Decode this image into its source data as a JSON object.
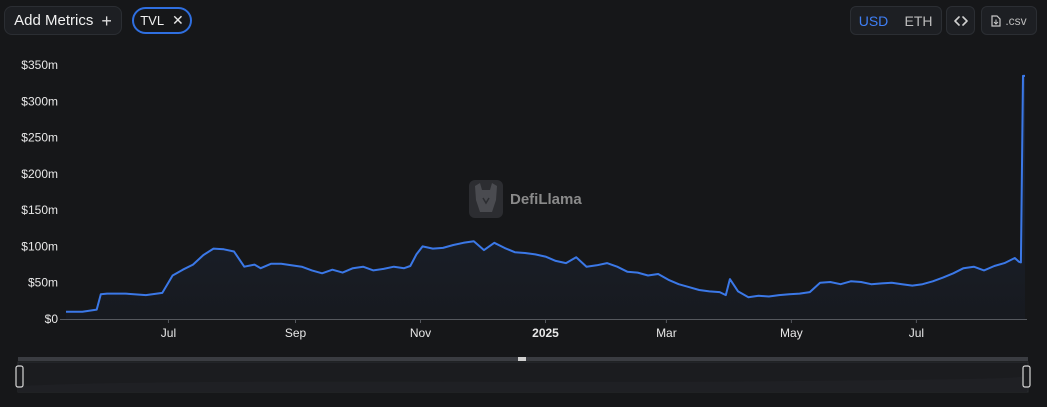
{
  "toolbar": {
    "add_metrics_label": "Add Metrics",
    "add_icon": "plus-icon",
    "chip_label": "TVL",
    "chip_close_icon": "close-icon",
    "currency_options": [
      "USD",
      "ETH"
    ],
    "selected_currency": "USD",
    "embed_icon": "code-icon",
    "csv_icon": "file-icon",
    "csv_label": ".csv"
  },
  "watermark": "DefiLlama",
  "colors": {
    "accent": "#2f6fe0",
    "line": "#3b78e7",
    "background": "#161719"
  },
  "chart_data": {
    "type": "area",
    "title": "",
    "xlabel": "",
    "ylabel": "",
    "ylim": [
      0,
      350
    ],
    "y_unit": "m",
    "y_ticks": [
      0,
      50,
      100,
      150,
      200,
      250,
      300,
      350
    ],
    "y_tick_labels": [
      "$0",
      "$50m",
      "$100m",
      "$150m",
      "$200m",
      "$250m",
      "$300m",
      "$350m"
    ],
    "x_tick_labels": [
      {
        "date": "2024-07-01",
        "label": "Jul",
        "bold": false
      },
      {
        "date": "2024-09-01",
        "label": "Sep",
        "bold": false
      },
      {
        "date": "2024-11-01",
        "label": "Nov",
        "bold": false
      },
      {
        "date": "2025-01-01",
        "label": "2025",
        "bold": true
      },
      {
        "date": "2025-03-01",
        "label": "Mar",
        "bold": false
      },
      {
        "date": "2025-05-01",
        "label": "May",
        "bold": false
      },
      {
        "date": "2025-07-01",
        "label": "Jul",
        "bold": false
      }
    ],
    "series": [
      {
        "x": [
          "2024-05-12",
          "2024-05-20",
          "2024-05-27",
          "2024-05-29",
          "2024-06-01",
          "2024-06-10",
          "2024-06-20",
          "2024-06-28",
          "2024-07-03",
          "2024-07-08",
          "2024-07-13",
          "2024-07-18",
          "2024-07-23",
          "2024-07-28",
          "2024-08-02",
          "2024-08-07",
          "2024-08-12",
          "2024-08-15",
          "2024-08-20",
          "2024-08-25",
          "2024-08-30",
          "2024-09-04",
          "2024-09-09",
          "2024-09-14",
          "2024-09-19",
          "2024-09-24",
          "2024-09-29",
          "2024-10-04",
          "2024-10-09",
          "2024-10-14",
          "2024-10-19",
          "2024-10-24",
          "2024-10-27",
          "2024-10-30",
          "2024-11-02",
          "2024-11-07",
          "2024-11-12",
          "2024-11-17",
          "2024-11-22",
          "2024-11-27",
          "2024-12-02",
          "2024-12-07",
          "2024-12-12",
          "2024-12-17",
          "2024-12-22",
          "2024-12-27",
          "2025-01-01",
          "2025-01-06",
          "2025-01-11",
          "2025-01-16",
          "2025-01-21",
          "2025-01-26",
          "2025-01-31",
          "2025-02-05",
          "2025-02-10",
          "2025-02-15",
          "2025-02-20",
          "2025-02-25",
          "2025-03-02",
          "2025-03-07",
          "2025-03-12",
          "2025-03-17",
          "2025-03-22",
          "2025-03-27",
          "2025-03-30",
          "2025-04-01",
          "2025-04-05",
          "2025-04-10",
          "2025-04-15",
          "2025-04-20",
          "2025-04-25",
          "2025-04-30",
          "2025-05-05",
          "2025-05-10",
          "2025-05-15",
          "2025-05-20",
          "2025-05-25",
          "2025-05-30",
          "2025-06-04",
          "2025-06-09",
          "2025-06-14",
          "2025-06-19",
          "2025-06-24",
          "2025-06-29",
          "2025-07-04",
          "2025-07-09",
          "2025-07-14",
          "2025-07-19",
          "2025-07-24",
          "2025-07-29",
          "2025-08-03",
          "2025-08-08",
          "2025-08-13",
          "2025-08-18",
          "2025-08-20",
          "2025-08-21",
          "2025-08-22",
          "2025-08-23"
        ],
        "values": [
          10,
          10,
          13,
          34,
          35,
          35,
          33,
          36,
          60,
          68,
          75,
          88,
          97,
          96,
          93,
          72,
          75,
          70,
          76,
          76,
          74,
          72,
          67,
          63,
          68,
          64,
          70,
          72,
          67,
          69,
          72,
          70,
          73,
          89,
          100,
          97,
          98,
          102,
          105,
          107,
          95,
          105,
          98,
          92,
          91,
          89,
          86,
          80,
          77,
          85,
          72,
          74,
          77,
          72,
          65,
          64,
          60,
          62,
          54,
          48,
          44,
          40,
          38,
          37,
          33,
          55,
          38,
          30,
          32,
          31,
          33,
          34,
          35,
          37,
          50,
          51,
          48,
          52,
          51,
          48,
          49,
          50,
          48,
          46,
          48,
          52,
          57,
          63,
          70,
          72,
          67,
          73,
          77,
          84,
          79,
          78,
          335,
          335
        ]
      }
    ],
    "legend": "none",
    "grid": false
  }
}
